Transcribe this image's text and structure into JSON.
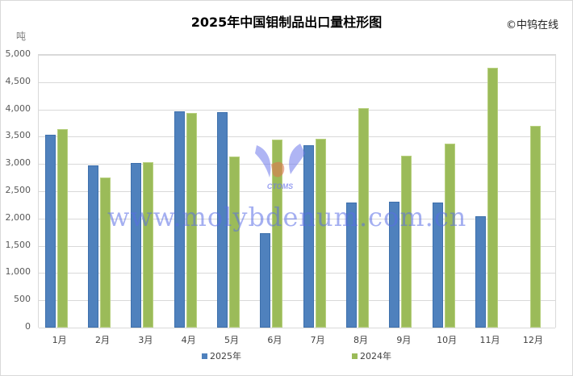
{
  "chart_data": {
    "type": "bar",
    "title": "2025年中国钼制品出口量柱形图",
    "copyright": "©中钨在线",
    "ylabel": "吨",
    "xlabel": "",
    "ylim": [
      0,
      5000
    ],
    "yticks": [
      "0",
      "500",
      "1,000",
      "1,500",
      "2,000",
      "2,500",
      "3,000",
      "3,500",
      "4,000",
      "4,500",
      "5,000"
    ],
    "grid": true,
    "legend_position": "bottom",
    "categories": [
      "1月",
      "2月",
      "3月",
      "4月",
      "5月",
      "6月",
      "7月",
      "8月",
      "9月",
      "10月",
      "11月",
      "12月"
    ],
    "series": [
      {
        "name": "2025年",
        "color": "#4f81bd",
        "values": [
          3535,
          2975,
          3020,
          3965,
          3950,
          1730,
          3345,
          2295,
          2310,
          2295,
          2040,
          null
        ]
      },
      {
        "name": "2024年",
        "color": "#9bbb59",
        "values": [
          3640,
          2750,
          3035,
          3935,
          3135,
          3445,
          3460,
          4025,
          3150,
          3375,
          4765,
          3700
        ]
      }
    ]
  },
  "watermark": {
    "text": "www.molybdenum.com.cn",
    "logo_text": "CTOMS"
  }
}
